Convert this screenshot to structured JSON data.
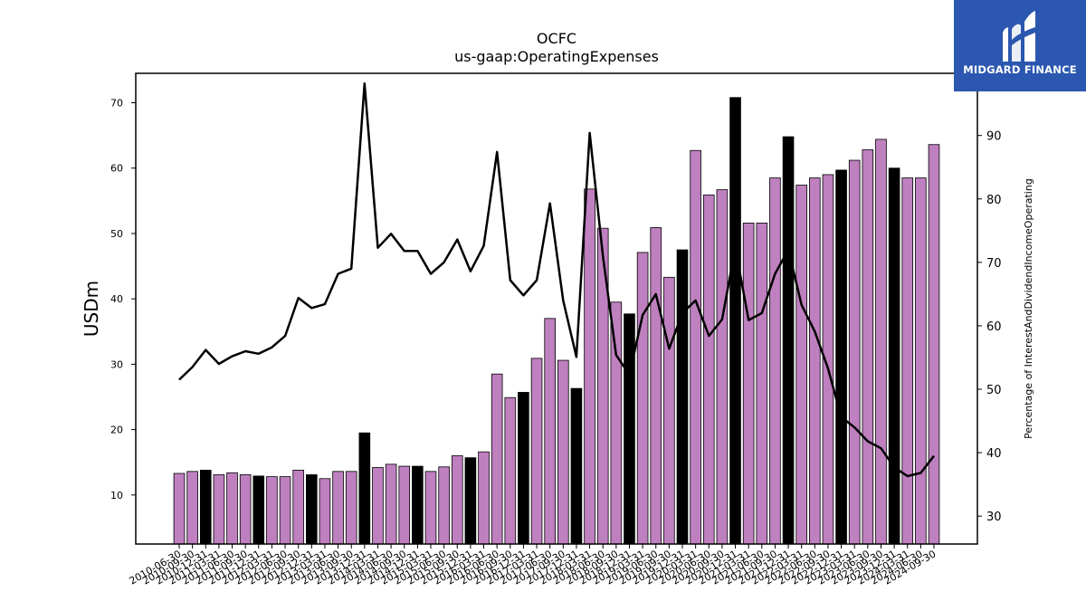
{
  "brand": {
    "name": "MIDGARD FINANCE",
    "color": "#2b57b0"
  },
  "chart_data": {
    "type": "bar",
    "title": "OCFC",
    "subtitle": "us-gaap:OperatingExpenses",
    "ylabel": "USDm",
    "y2label": "Percentage of InterestAndDividendIncomeOperating",
    "ylim": [
      2.5,
      74.5
    ],
    "y2lim": [
      25.6,
      99.8
    ],
    "yticks": [
      10,
      20,
      30,
      40,
      50,
      60,
      70
    ],
    "y2ticks": [
      30,
      40,
      50,
      60,
      70,
      80,
      90
    ],
    "colors": {
      "quarter": "#bf80bf",
      "annual": "#000000",
      "line": "#000000"
    },
    "categories": [
      "2010-06-30",
      "2010-09-30",
      "2010-12-31",
      "2011-03-31",
      "2011-06-30",
      "2011-09-30",
      "2011-12-31",
      "2012-03-31",
      "2012-06-30",
      "2012-09-30",
      "2012-12-31",
      "2013-03-31",
      "2013-06-30",
      "2013-09-30",
      "2013-12-31",
      "2014-03-31",
      "2014-06-30",
      "2014-09-30",
      "2014-12-31",
      "2015-03-31",
      "2015-06-30",
      "2015-09-30",
      "2015-12-31",
      "2016-03-31",
      "2016-06-30",
      "2016-09-30",
      "2016-12-31",
      "2017-03-31",
      "2017-06-30",
      "2017-09-30",
      "2017-12-31",
      "2018-03-31",
      "2018-06-30",
      "2018-09-30",
      "2018-12-31",
      "2019-03-31",
      "2019-06-30",
      "2019-09-30",
      "2019-12-31",
      "2020-03-31",
      "2020-06-30",
      "2020-09-30",
      "2020-12-31",
      "2021-03-31",
      "2021-06-30",
      "2021-09-30",
      "2021-12-31",
      "2022-03-31",
      "2022-06-30",
      "2022-09-30",
      "2022-12-31",
      "2023-03-31",
      "2023-06-30",
      "2023-09-30",
      "2023-12-31",
      "2024-03-31",
      "2024-06-30",
      "2024-09-30"
    ],
    "xtick_labels": [
      "2010-06-30",
      "2010-09-30",
      "2010-12-31",
      "2011-03-31",
      "2011-06-30",
      "2011-09-30",
      "2011-12-31",
      "2012-03-31",
      "2012-06-30",
      "2012-09-30",
      "2012-12-31",
      "2013-03-31",
      "2013-06-30",
      "2013-09-30",
      "2013-12-31",
      "2014-03-31",
      "2014-06-30",
      "2014-09-30",
      "2014-12-31",
      "2015-03-31",
      "2015-06-30",
      "2015-09-30",
      "2015-12-31",
      "2016-03-31",
      "2016-06-30",
      "2016-09-30",
      "2016-12-31",
      "2017-03-31",
      "2017-06-30",
      "2017-09-30",
      "2017-12-31",
      "2018-03-31",
      "2018-06-30",
      "2018-09-30",
      "2018-12-31",
      "2019-03-31",
      "2019-06-30",
      "2019-09-30",
      "2019-12-31",
      "2020-03-31",
      "2020-06-30",
      "2020-09-30",
      "2020-12-31",
      "2021-03-31",
      "2021-06-30",
      "2021-09-30",
      "2021-12-31",
      "2022-03-31",
      "2022-06-30",
      "2022-09-30",
      "2022-12-31",
      "2023-03-31",
      "2023-06-30",
      "2023-09-30",
      "2023-12-31",
      "2024-03-31",
      "2024-06-30",
      "2024-09-30"
    ],
    "series": [
      {
        "type": "bar",
        "values": [
          13.3,
          13.6,
          13.8,
          13.1,
          13.4,
          13.1,
          12.9,
          12.8,
          12.8,
          13.8,
          13.1,
          12.5,
          13.6,
          13.6,
          19.5,
          14.2,
          14.7,
          14.4,
          14.4,
          13.6,
          14.3,
          16.0,
          15.7,
          16.6,
          28.5,
          24.9,
          25.7,
          30.9,
          37.0,
          30.6,
          26.3,
          56.8,
          50.8,
          39.5,
          37.7,
          47.1,
          50.9,
          43.3,
          47.5,
          62.7,
          55.9,
          56.7,
          70.8,
          51.6,
          51.6,
          58.5,
          64.8,
          57.4,
          58.5,
          59.0,
          59.7,
          61.2,
          62.8,
          64.4,
          60.0,
          58.5,
          58.5,
          63.6
        ],
        "annual_flags": [
          false,
          false,
          true,
          false,
          false,
          false,
          true,
          false,
          false,
          false,
          true,
          false,
          false,
          false,
          true,
          false,
          false,
          false,
          true,
          false,
          false,
          false,
          true,
          false,
          false,
          false,
          true,
          false,
          false,
          false,
          true,
          false,
          false,
          false,
          true,
          false,
          false,
          false,
          true,
          false,
          false,
          false,
          true,
          false,
          false,
          false,
          true,
          false,
          false,
          false,
          true,
          false,
          false,
          false,
          true,
          false,
          false,
          false
        ]
      },
      {
        "type": "line",
        "axis": "right",
        "values": [
          51.5,
          53.5,
          56.2,
          54.0,
          55.2,
          56.0,
          55.6,
          56.6,
          58.4,
          64.4,
          62.8,
          63.4,
          68.2,
          69.0,
          98.2,
          72.3,
          74.5,
          71.8,
          71.8,
          68.2,
          70.0,
          73.6,
          68.6,
          72.6,
          87.4,
          67.2,
          64.8,
          67.2,
          79.3,
          64.0,
          55.1,
          90.4,
          71.0,
          55.4,
          52.3,
          61.7,
          65.0,
          56.4,
          62.0,
          64.0,
          58.4,
          61.0,
          72.3,
          60.9,
          62.0,
          68.2,
          72.0,
          63.3,
          59.1,
          53.3,
          45.6,
          44.0,
          41.8,
          40.7,
          37.7,
          36.3,
          36.8,
          39.5
        ]
      }
    ]
  }
}
